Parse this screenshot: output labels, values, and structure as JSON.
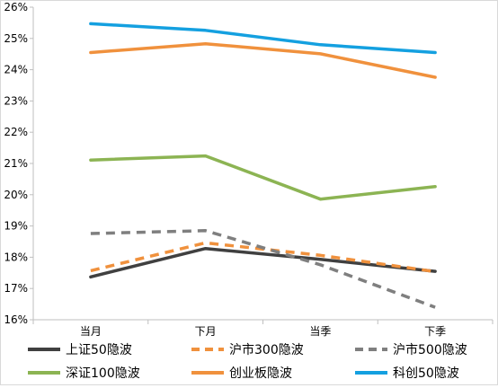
{
  "chart_data": {
    "type": "line",
    "categories": [
      "当月",
      "下月",
      "当季",
      "下季"
    ],
    "ylim": [
      0.16,
      0.26
    ],
    "yticks": [
      "16%",
      "17%",
      "18%",
      "19%",
      "20%",
      "21%",
      "22%",
      "23%",
      "24%",
      "25%",
      "26%"
    ],
    "grid": false,
    "legend_position": "bottom",
    "series": [
      {
        "name": "上证50隐波",
        "color": "#404040",
        "dash": "solid",
        "values": [
          0.1737,
          0.1828,
          0.1793,
          0.1755
        ]
      },
      {
        "name": "沪市300隐波",
        "color": "#f0913d",
        "dash": "dashed",
        "values": [
          0.1757,
          0.1846,
          0.1806,
          0.1754
        ]
      },
      {
        "name": "沪市500隐波",
        "color": "#7f7f7f",
        "dash": "dashed",
        "values": [
          0.1876,
          0.1885,
          0.1776,
          0.164
        ]
      },
      {
        "name": "深证100隐波",
        "color": "#8cb453",
        "dash": "solid",
        "values": [
          0.2111,
          0.2124,
          0.1986,
          0.2026
        ]
      },
      {
        "name": "创业板隐波",
        "color": "#f0913d",
        "dash": "solid",
        "values": [
          0.2455,
          0.2483,
          0.2451,
          0.2376
        ]
      },
      {
        "name": "科创50隐波",
        "color": "#14a0e0",
        "dash": "solid",
        "values": [
          0.2547,
          0.2526,
          0.248,
          0.2455
        ]
      }
    ]
  }
}
